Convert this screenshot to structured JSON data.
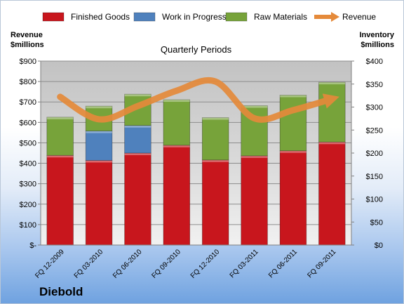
{
  "brand": {
    "company": "Diebold"
  },
  "chart_data": {
    "type": "bar",
    "title": "Quarterly Periods",
    "ylabel_left": "Revenue\n$millions",
    "ylabel_right": "Inventory\n$millions",
    "categories": [
      "FQ 12-2009",
      "FQ 03-2010",
      "FQ 06-2010",
      "FQ 09-2010",
      "FQ 12-2010",
      "FQ 03-2011",
      "FQ 06-2011",
      "FQ 09-2011"
    ],
    "left_axis": {
      "min": 0,
      "max": 900,
      "step": 100,
      "ticks": [
        "$-",
        "$100",
        "$200",
        "$300",
        "$400",
        "$500",
        "$600",
        "$700",
        "$800",
        "$900"
      ]
    },
    "right_axis": {
      "min": 0,
      "max": 400,
      "step": 50,
      "ticks": [
        "$0",
        "$50",
        "$100",
        "$150",
        "$200",
        "$250",
        "$300",
        "$350",
        "$400"
      ]
    },
    "stacked": true,
    "series": [
      {
        "name": "Finished Goods",
        "axis": "right",
        "color": "#c8161d",
        "values": [
          195,
          184,
          200,
          217,
          185,
          194,
          205,
          224
        ]
      },
      {
        "name": "Work in Progress",
        "axis": "right",
        "color": "#4f81bd",
        "values": [
          0,
          64,
          60,
          0,
          0,
          0,
          0,
          0
        ]
      },
      {
        "name": "Raw Materials",
        "axis": "right",
        "color": "#77a33a",
        "values": [
          83,
          54,
          68,
          99,
          92,
          109,
          121,
          130
        ]
      },
      {
        "name": "Revenue",
        "axis": "left",
        "type": "line",
        "color": "#e58a3a",
        "values": [
          725,
          615,
          680,
          755,
          800,
          620,
          660,
          715
        ]
      }
    ],
    "legend_position": "top",
    "grid": true
  }
}
